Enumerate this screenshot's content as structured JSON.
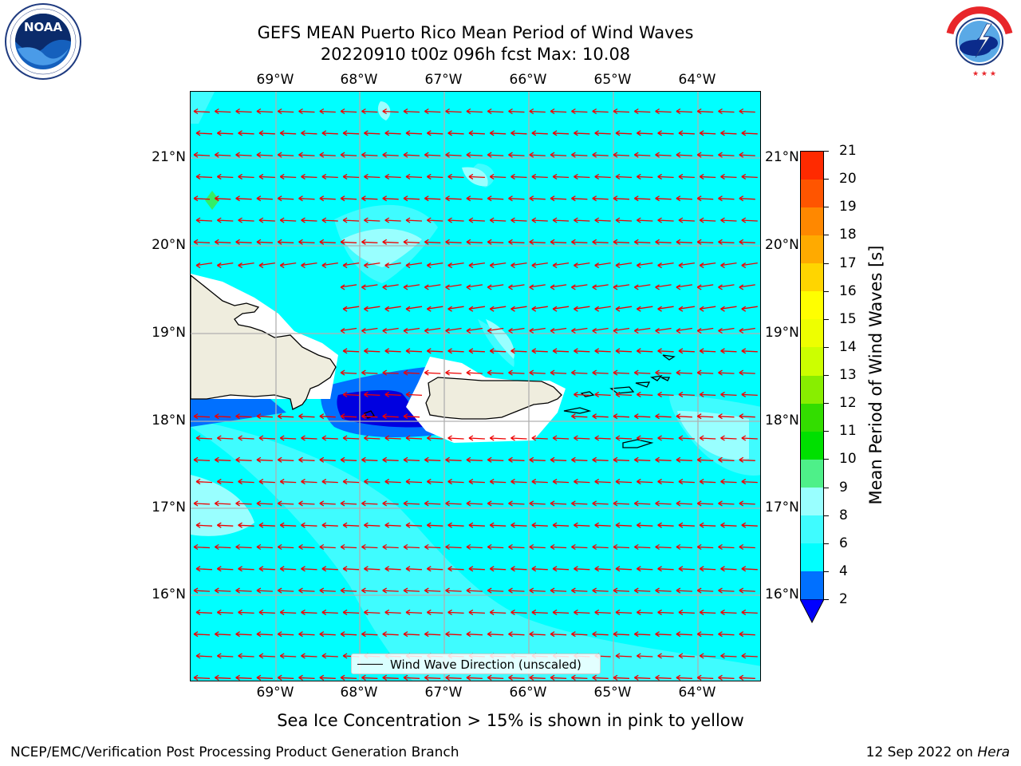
{
  "header": {
    "title_line1": "GEFS MEAN Puerto Rico Mean Period of Wind Waves",
    "title_line2": "20220910 t00z 096h fcst   Max: 10.08"
  },
  "logos": {
    "noaa": {
      "text": "NOAA",
      "ring_text": "NATIONAL OCEANIC AND ATMOSPHERIC ADMINISTRATION · U.S. DEPARTMENT OF COMMERCE"
    },
    "nws": {
      "ring_text": "NATIONAL WEATHER SERVICE"
    }
  },
  "map": {
    "lon_labels": [
      "69°W",
      "68°W",
      "67°W",
      "66°W",
      "65°W",
      "64°W"
    ],
    "lat_labels": [
      "21°N",
      "20°N",
      "19°N",
      "18°N",
      "17°N",
      "16°N"
    ],
    "legend_label": "Wind Wave Direction (unscaled)",
    "colors": {
      "ocean_main": "#00ffff",
      "ocean_light": "#3ffcff",
      "ocean_pale": "#99ffff",
      "blue_2_4": "#0070ff",
      "blue_lt2": "#0000e0",
      "green_9_10": "#33ee66",
      "land": "#efedde",
      "arrow": "#ee0000"
    }
  },
  "colorbar": {
    "label": "Mean Period of Wind Waves [s]",
    "ticks": [
      "2",
      "4",
      "6",
      "8",
      "9",
      "10",
      "11",
      "12",
      "13",
      "14",
      "15",
      "16",
      "17",
      "18",
      "19",
      "20",
      "21"
    ],
    "colors": [
      "#0070ff",
      "#00ffff",
      "#3ffcff",
      "#99ffff",
      "#4ef089",
      "#00e000",
      "#33dd00",
      "#88ee00",
      "#ccff00",
      "#eeff00",
      "#ffff00",
      "#ffd500",
      "#ffaa00",
      "#ff8800",
      "#ff5500",
      "#ff2a00"
    ],
    "extend_color": "#0000ff",
    "top_color": "#ff0000"
  },
  "subtitle": "Sea Ice Concentration > 15% is shown in pink to yellow",
  "footer": {
    "left": "NCEP/EMC/Verification Post Processing Product Generation Branch",
    "right_prefix": "12 Sep 2022 on ",
    "right_host": "Hera"
  }
}
